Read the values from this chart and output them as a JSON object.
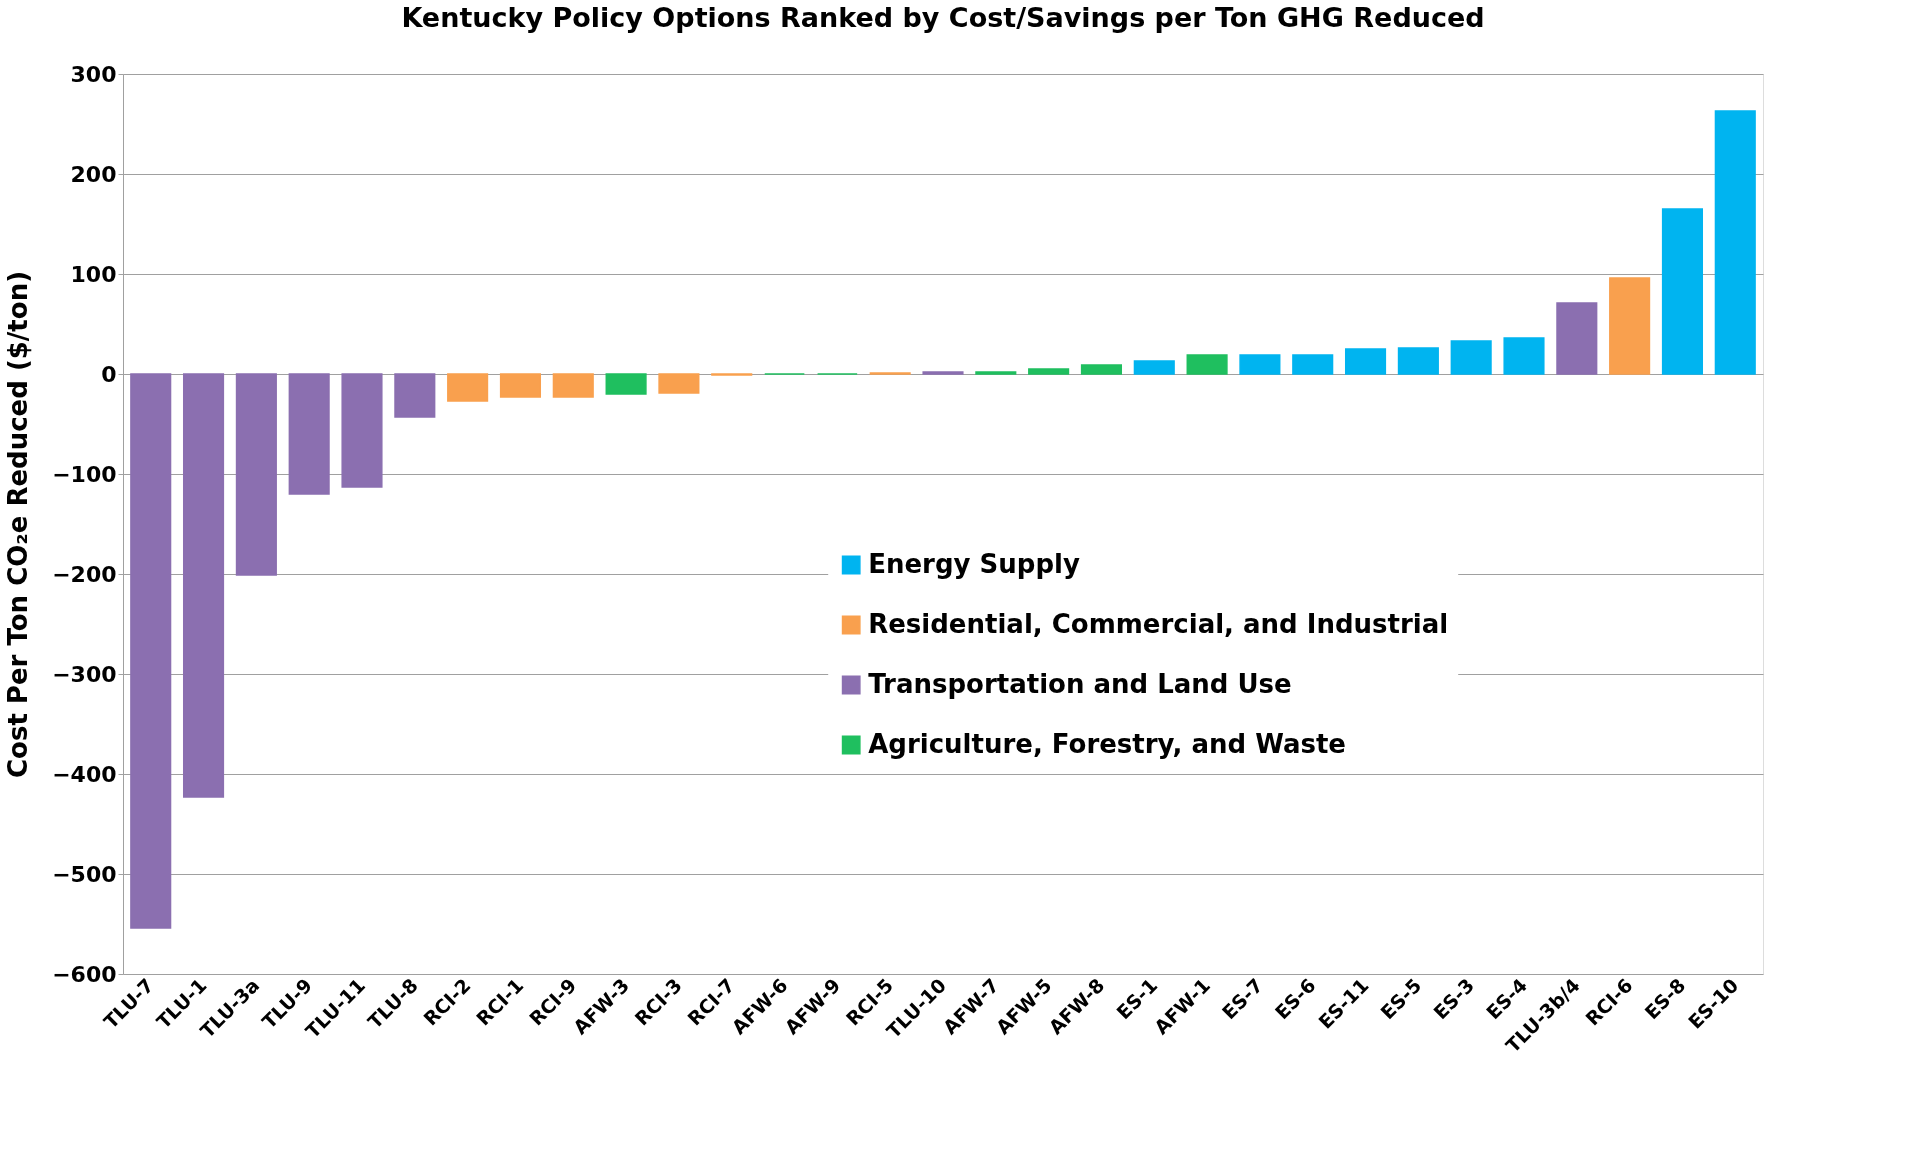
{
  "chart_data": {
    "type": "bar",
    "title": "Kentucky Policy Options Ranked by Cost/Savings per Ton GHG Reduced",
    "ylabel": "Cost Per Ton CO₂e Reduced ($/ton)",
    "categories": [
      "TLU-7",
      "TLU-1",
      "TLU-3a",
      "TLU-9",
      "TLU-11",
      "TLU-8",
      "RCI-2",
      "RCI-1",
      "RCI-9",
      "AFW-3",
      "RCI-3",
      "RCI-7",
      "AFW-6",
      "AFW-9",
      "RCI-5",
      "TLU-10",
      "AFW-7",
      "AFW-5",
      "AFW-8",
      "ES-1",
      "AFW-1",
      "ES-7",
      "ES-6",
      "ES-11",
      "ES-5",
      "ES-3",
      "ES-4",
      "TLU-3b/4",
      "RCI-6",
      "ES-8",
      "ES-10"
    ],
    "series": [
      {
        "name": "Energy Supply",
        "color": "#00b4f0",
        "values": [
          null,
          null,
          null,
          null,
          null,
          null,
          null,
          null,
          null,
          null,
          null,
          null,
          null,
          null,
          null,
          null,
          null,
          null,
          null,
          13,
          null,
          19,
          19,
          25,
          26,
          33,
          36,
          null,
          null,
          165,
          263
        ]
      },
      {
        "name": "Residential, Commercial, and Industrial",
        "color": "#f9a04e",
        "values": [
          null,
          null,
          null,
          null,
          null,
          null,
          -27,
          -23,
          -23,
          null,
          -19,
          -1,
          null,
          null,
          1,
          null,
          null,
          null,
          null,
          null,
          null,
          null,
          null,
          null,
          null,
          null,
          null,
          null,
          96,
          null,
          null
        ]
      },
      {
        "name": "Transportation and Land Use",
        "color": "#8b6fb0",
        "values": [
          -554,
          -423,
          -201,
          -120,
          -113,
          -43,
          null,
          null,
          null,
          null,
          null,
          null,
          null,
          null,
          null,
          2,
          null,
          null,
          null,
          null,
          null,
          null,
          null,
          null,
          null,
          null,
          null,
          71,
          null,
          null,
          null
        ]
      },
      {
        "name": "Agriculture, Forestry, and Waste",
        "color": "#1fbf5f",
        "values": [
          null,
          null,
          null,
          null,
          null,
          null,
          null,
          null,
          null,
          -20,
          null,
          null,
          0,
          0,
          null,
          null,
          2,
          5,
          9,
          null,
          19,
          null,
          null,
          null,
          null,
          null,
          null,
          null,
          null,
          null,
          null
        ]
      }
    ],
    "ylim": [
      -600,
      300
    ],
    "yticks": [
      -600,
      -500,
      -400,
      -300,
      -200,
      -100,
      0,
      100,
      200,
      300
    ],
    "grid": "y",
    "legend": "bottom"
  }
}
